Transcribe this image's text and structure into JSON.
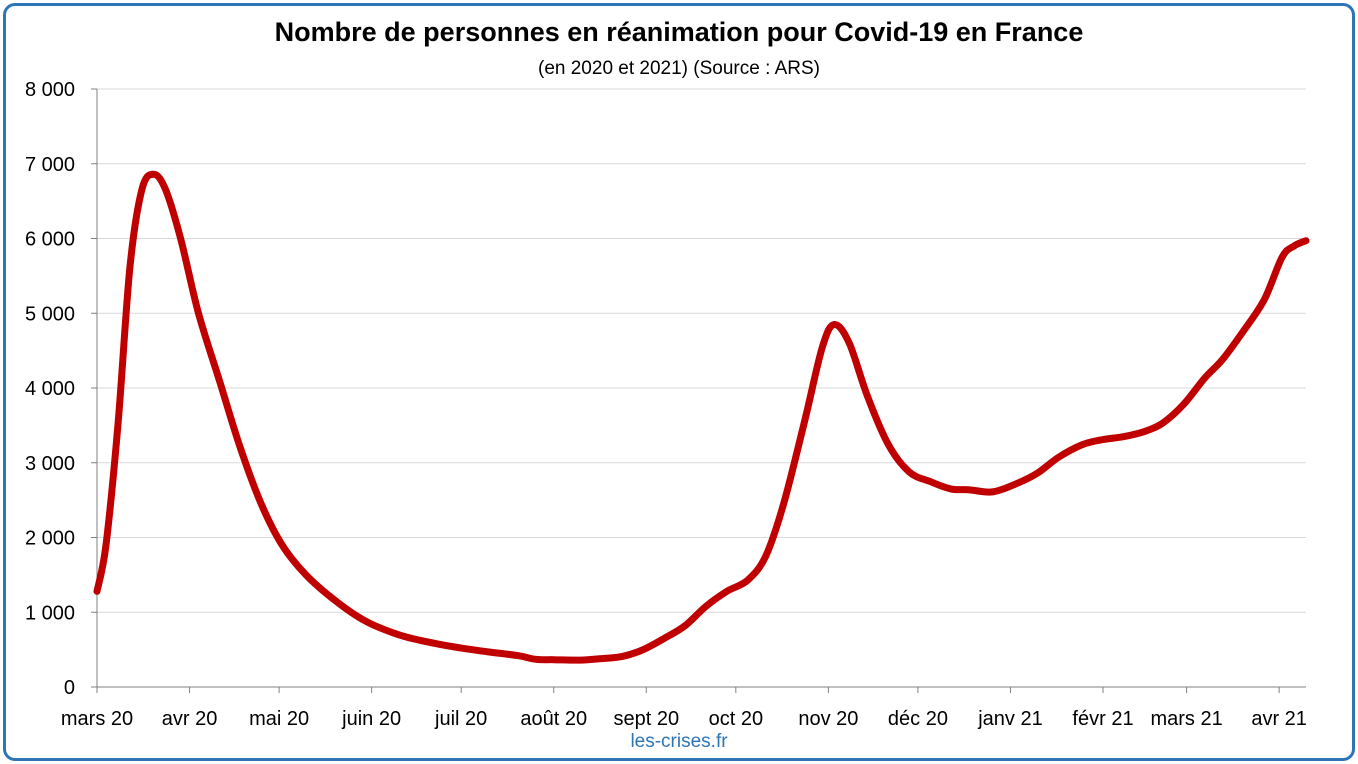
{
  "chart_data": {
    "type": "line",
    "title": "Nombre de personnes en réanimation pour Covid-19 en France",
    "subtitle": "(en 2020 et 2021) (Source : ARS)",
    "xlabel": "",
    "ylabel": "",
    "ylim": [
      0,
      8000
    ],
    "yticks": [
      {
        "value": 0,
        "label": "0"
      },
      {
        "value": 1000,
        "label": "1 000"
      },
      {
        "value": 2000,
        "label": "2 000"
      },
      {
        "value": 3000,
        "label": "3 000"
      },
      {
        "value": 4000,
        "label": "4 000"
      },
      {
        "value": 5000,
        "label": "5 000"
      },
      {
        "value": 6000,
        "label": "6 000"
      },
      {
        "value": 7000,
        "label": "7 000"
      },
      {
        "value": 8000,
        "label": "8 000"
      }
    ],
    "xlim": [
      "2020-03-01",
      "2021-04-10"
    ],
    "xticks": [
      {
        "date": "2020-03-01",
        "label": "mars 20"
      },
      {
        "date": "2020-04-01",
        "label": "avr 20"
      },
      {
        "date": "2020-05-01",
        "label": "mai 20"
      },
      {
        "date": "2020-06-01",
        "label": "juin 20"
      },
      {
        "date": "2020-07-01",
        "label": "juil 20"
      },
      {
        "date": "2020-08-01",
        "label": "août 20"
      },
      {
        "date": "2020-09-01",
        "label": "sept 20"
      },
      {
        "date": "2020-10-01",
        "label": "oct 20"
      },
      {
        "date": "2020-11-01",
        "label": "nov 20"
      },
      {
        "date": "2020-12-01",
        "label": "déc 20"
      },
      {
        "date": "2021-01-01",
        "label": "janv 21"
      },
      {
        "date": "2021-02-01",
        "label": "févr 21"
      },
      {
        "date": "2021-03-01",
        "label": "mars 21"
      },
      {
        "date": "2021-04-01",
        "label": "avr 21"
      }
    ],
    "grid": {
      "horizontal": true,
      "vertical": false
    },
    "series": [
      {
        "color": "#c00000",
        "points": [
          [
            "2020-03-01",
            1280
          ],
          [
            "2020-03-04",
            1900
          ],
          [
            "2020-03-08",
            3500
          ],
          [
            "2020-03-12",
            5600
          ],
          [
            "2020-03-16",
            6650
          ],
          [
            "2020-03-20",
            6860
          ],
          [
            "2020-03-24",
            6650
          ],
          [
            "2020-03-29",
            6000
          ],
          [
            "2020-04-04",
            5000
          ],
          [
            "2020-04-11",
            4100
          ],
          [
            "2020-04-18",
            3200
          ],
          [
            "2020-04-25",
            2450
          ],
          [
            "2020-05-02",
            1900
          ],
          [
            "2020-05-10",
            1500
          ],
          [
            "2020-05-20",
            1150
          ],
          [
            "2020-05-30",
            880
          ],
          [
            "2020-06-10",
            700
          ],
          [
            "2020-06-20",
            600
          ],
          [
            "2020-07-01",
            520
          ],
          [
            "2020-07-10",
            470
          ],
          [
            "2020-07-20",
            420
          ],
          [
            "2020-07-26",
            370
          ],
          [
            "2020-08-01",
            365
          ],
          [
            "2020-08-10",
            360
          ],
          [
            "2020-08-17",
            380
          ],
          [
            "2020-08-24",
            410
          ],
          [
            "2020-08-31",
            500
          ],
          [
            "2020-09-07",
            650
          ],
          [
            "2020-09-14",
            820
          ],
          [
            "2020-09-21",
            1080
          ],
          [
            "2020-09-28",
            1280
          ],
          [
            "2020-10-05",
            1430
          ],
          [
            "2020-10-11",
            1750
          ],
          [
            "2020-10-17",
            2450
          ],
          [
            "2020-10-24",
            3550
          ],
          [
            "2020-10-30",
            4550
          ],
          [
            "2020-11-03",
            4850
          ],
          [
            "2020-11-08",
            4600
          ],
          [
            "2020-11-14",
            3900
          ],
          [
            "2020-11-21",
            3250
          ],
          [
            "2020-11-28",
            2880
          ],
          [
            "2020-12-05",
            2750
          ],
          [
            "2020-12-12",
            2650
          ],
          [
            "2020-12-18",
            2640
          ],
          [
            "2020-12-26",
            2610
          ],
          [
            "2021-01-03",
            2720
          ],
          [
            "2021-01-10",
            2860
          ],
          [
            "2021-01-17",
            3070
          ],
          [
            "2021-01-25",
            3240
          ],
          [
            "2021-02-01",
            3310
          ],
          [
            "2021-02-08",
            3350
          ],
          [
            "2021-02-15",
            3420
          ],
          [
            "2021-02-21",
            3530
          ],
          [
            "2021-02-28",
            3780
          ],
          [
            "2021-03-07",
            4130
          ],
          [
            "2021-03-13",
            4380
          ],
          [
            "2021-03-20",
            4760
          ],
          [
            "2021-03-27",
            5180
          ],
          [
            "2021-04-02",
            5750
          ],
          [
            "2021-04-06",
            5900
          ],
          [
            "2021-04-10",
            5970
          ]
        ]
      }
    ]
  },
  "watermark": {
    "text": "les-crises.fr",
    "color": "#2e75b6"
  },
  "colors": {
    "frame": "#2e75b6",
    "line": "#c00000",
    "grid": "#d9d9d9",
    "axis": "#808080"
  }
}
